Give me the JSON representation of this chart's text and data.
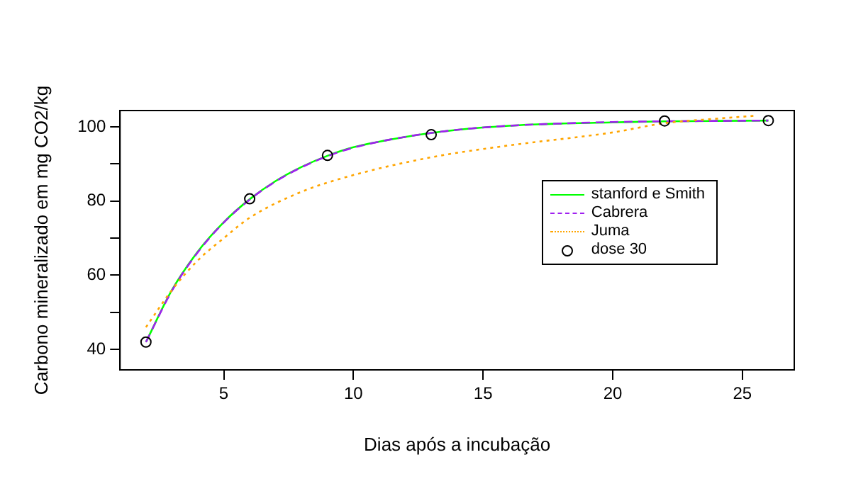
{
  "chart_data": {
    "type": "line",
    "xlabel": "Dias após a incubação",
    "ylabel": "Carbono mineralizado em mg CO2/kg",
    "xlim": [
      1,
      27
    ],
    "xticks": [
      5,
      10,
      15,
      20,
      25
    ],
    "ylim": [
      34.5,
      104.4
    ],
    "yticks": [
      40,
      {
        "value": 50,
        "label": null
      },
      60,
      {
        "value": 70,
        "label": null
      },
      80,
      {
        "value": 90,
        "label": null
      },
      100
    ],
    "grid": false,
    "legend": "right",
    "series": [
      {
        "name": "stanford e Smith",
        "type": "line",
        "marker": "none",
        "line_style": "solid",
        "color": "#00ff00",
        "x": [
          2,
          3,
          4,
          5,
          6,
          7,
          8,
          9,
          10,
          12,
          14,
          16,
          18,
          20,
          22,
          24,
          26
        ],
        "values": [
          42,
          56,
          66.4,
          74.3,
          80.5,
          85.4,
          89.2,
          92.2,
          94.5,
          97.3,
          99.2,
          100.3,
          100.9,
          101.2,
          101.5,
          101.6,
          101.7
        ]
      },
      {
        "name": "Cabrera",
        "type": "line",
        "marker": "none",
        "line_style": "dashed",
        "color": "#a020f0",
        "x": [
          2,
          3,
          4,
          5,
          6,
          7,
          8,
          9,
          10,
          12,
          14,
          16,
          18,
          20,
          22,
          24,
          26
        ],
        "values": [
          42,
          55.8,
          66.2,
          74.2,
          80.4,
          85.3,
          89.1,
          92.1,
          94.4,
          97.3,
          99.2,
          100.3,
          100.9,
          101.3,
          101.5,
          101.6,
          101.7
        ]
      },
      {
        "name": "Juma",
        "type": "line",
        "marker": "none",
        "line_style": "dotted",
        "color": "#ffa500",
        "x": [
          2,
          3,
          4,
          5,
          6,
          8,
          10,
          13,
          16,
          20,
          22,
          24,
          25.5
        ],
        "values": [
          46,
          56,
          64,
          70,
          75.5,
          82.5,
          87,
          91.8,
          95,
          98.5,
          101,
          102.2,
          103
        ]
      },
      {
        "name": "dose 30",
        "type": "scatter",
        "marker": "circle",
        "color": "#000000",
        "x": [
          2,
          6,
          9,
          13,
          22,
          26
        ],
        "values": [
          42,
          80.6,
          92.3,
          97.9,
          101.6,
          101.7
        ]
      }
    ]
  }
}
